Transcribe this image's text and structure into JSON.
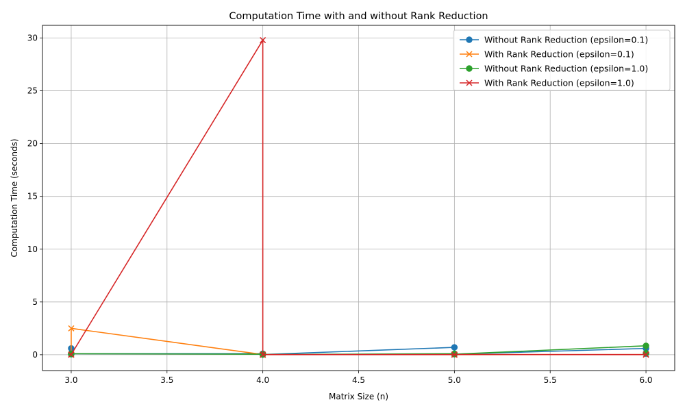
{
  "chart_data": {
    "type": "line",
    "title": "Computation Time with and without Rank Reduction",
    "xlabel": "Matrix Size (n)",
    "ylabel": "Computation Time (seconds)",
    "xlim": [
      2.85,
      6.15
    ],
    "ylim": [
      -1.5,
      31.2
    ],
    "xticks": [
      3.0,
      3.5,
      4.0,
      4.5,
      5.0,
      5.5,
      6.0
    ],
    "xtick_labels": [
      "3.0",
      "3.5",
      "4.0",
      "4.5",
      "5.0",
      "5.5",
      "6.0"
    ],
    "yticks": [
      0,
      5,
      10,
      15,
      20,
      25,
      30
    ],
    "ytick_labels": [
      "0",
      "5",
      "10",
      "15",
      "20",
      "25",
      "30"
    ],
    "grid": true,
    "legend_position": "top-right",
    "series": [
      {
        "name": "Without Rank Reduction (epsilon=0.1)",
        "color": "#1f77b4",
        "marker": "circle",
        "x": [
          3,
          3,
          3,
          4,
          4,
          4,
          5,
          5,
          6,
          6
        ],
        "y": [
          0.6,
          0.05,
          0.1,
          0.1,
          0.05,
          0.02,
          0.7,
          0.05,
          0.6,
          0.1
        ]
      },
      {
        "name": "With Rank Reduction (epsilon=0.1)",
        "color": "#ff7f0e",
        "marker": "x",
        "x": [
          3,
          3,
          3,
          4,
          4,
          4,
          5,
          5,
          6,
          6
        ],
        "y": [
          0.0,
          0.02,
          2.5,
          0.02,
          0.0,
          0.01,
          0.01,
          0.02,
          0.01,
          0.02
        ]
      },
      {
        "name": "Without Rank Reduction (epsilon=1.0)",
        "color": "#2ca02c",
        "marker": "circle",
        "x": [
          3,
          3,
          4,
          4,
          5,
          5,
          6,
          6
        ],
        "y": [
          0.05,
          0.1,
          0.05,
          0.02,
          0.1,
          0.05,
          0.85,
          0.15
        ]
      },
      {
        "name": "With Rank Reduction (epsilon=1.0)",
        "color": "#d62728",
        "marker": "x",
        "x": [
          3,
          3,
          4,
          4,
          4,
          5,
          5,
          6,
          6
        ],
        "y": [
          0.01,
          0.02,
          29.8,
          0.0,
          0.01,
          0.01,
          0.02,
          0.01,
          0.02
        ]
      }
    ]
  }
}
